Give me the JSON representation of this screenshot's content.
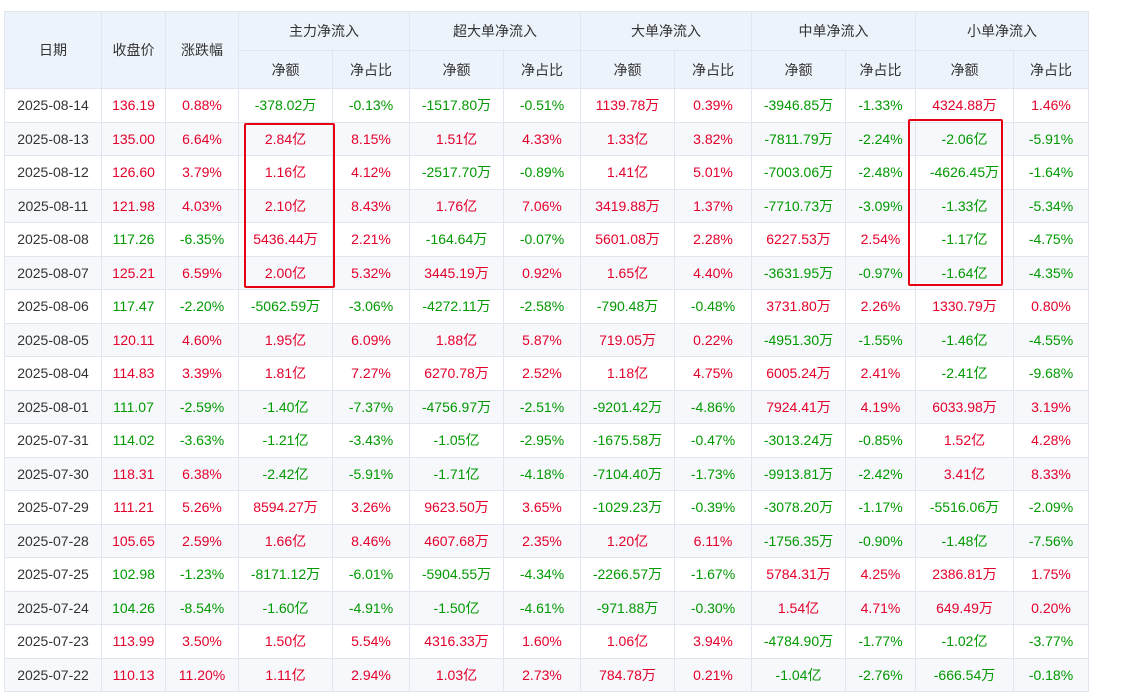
{
  "header": {
    "date": "日期",
    "close": "收盘价",
    "change": "涨跌幅",
    "groups": [
      "主力净流入",
      "超大单净流入",
      "大单净流入",
      "中单净流入",
      "小单净流入"
    ],
    "sub_amount": "净额",
    "sub_ratio": "净占比"
  },
  "rows": [
    [
      "2025-08-14",
      "136.19",
      "0.88%",
      "-378.02万",
      "-0.13%",
      "-1517.80万",
      "-0.51%",
      "1139.78万",
      "0.39%",
      "-3946.85万",
      "-1.33%",
      "4324.88万",
      "1.46%"
    ],
    [
      "2025-08-13",
      "135.00",
      "6.64%",
      "2.84亿",
      "8.15%",
      "1.51亿",
      "4.33%",
      "1.33亿",
      "3.82%",
      "-7811.79万",
      "-2.24%",
      "-2.06亿",
      "-5.91%"
    ],
    [
      "2025-08-12",
      "126.60",
      "3.79%",
      "1.16亿",
      "4.12%",
      "-2517.70万",
      "-0.89%",
      "1.41亿",
      "5.01%",
      "-7003.06万",
      "-2.48%",
      "-4626.45万",
      "-1.64%"
    ],
    [
      "2025-08-11",
      "121.98",
      "4.03%",
      "2.10亿",
      "8.43%",
      "1.76亿",
      "7.06%",
      "3419.88万",
      "1.37%",
      "-7710.73万",
      "-3.09%",
      "-1.33亿",
      "-5.34%"
    ],
    [
      "2025-08-08",
      "117.26",
      "-6.35%",
      "5436.44万",
      "2.21%",
      "-164.64万",
      "-0.07%",
      "5601.08万",
      "2.28%",
      "6227.53万",
      "2.54%",
      "-1.17亿",
      "-4.75%"
    ],
    [
      "2025-08-07",
      "125.21",
      "6.59%",
      "2.00亿",
      "5.32%",
      "3445.19万",
      "0.92%",
      "1.65亿",
      "4.40%",
      "-3631.95万",
      "-0.97%",
      "-1.64亿",
      "-4.35%"
    ],
    [
      "2025-08-06",
      "117.47",
      "-2.20%",
      "-5062.59万",
      "-3.06%",
      "-4272.11万",
      "-2.58%",
      "-790.48万",
      "-0.48%",
      "3731.80万",
      "2.26%",
      "1330.79万",
      "0.80%"
    ],
    [
      "2025-08-05",
      "120.11",
      "4.60%",
      "1.95亿",
      "6.09%",
      "1.88亿",
      "5.87%",
      "719.05万",
      "0.22%",
      "-4951.30万",
      "-1.55%",
      "-1.46亿",
      "-4.55%"
    ],
    [
      "2025-08-04",
      "114.83",
      "3.39%",
      "1.81亿",
      "7.27%",
      "6270.78万",
      "2.52%",
      "1.18亿",
      "4.75%",
      "6005.24万",
      "2.41%",
      "-2.41亿",
      "-9.68%"
    ],
    [
      "2025-08-01",
      "111.07",
      "-2.59%",
      "-1.40亿",
      "-7.37%",
      "-4756.97万",
      "-2.51%",
      "-9201.42万",
      "-4.86%",
      "7924.41万",
      "4.19%",
      "6033.98万",
      "3.19%"
    ],
    [
      "2025-07-31",
      "114.02",
      "-3.63%",
      "-1.21亿",
      "-3.43%",
      "-1.05亿",
      "-2.95%",
      "-1675.58万",
      "-0.47%",
      "-3013.24万",
      "-0.85%",
      "1.52亿",
      "4.28%"
    ],
    [
      "2025-07-30",
      "118.31",
      "6.38%",
      "-2.42亿",
      "-5.91%",
      "-1.71亿",
      "-4.18%",
      "-7104.40万",
      "-1.73%",
      "-9913.81万",
      "-2.42%",
      "3.41亿",
      "8.33%"
    ],
    [
      "2025-07-29",
      "111.21",
      "5.26%",
      "8594.27万",
      "3.26%",
      "9623.50万",
      "3.65%",
      "-1029.23万",
      "-0.39%",
      "-3078.20万",
      "-1.17%",
      "-5516.06万",
      "-2.09%"
    ],
    [
      "2025-07-28",
      "105.65",
      "2.59%",
      "1.66亿",
      "8.46%",
      "4607.68万",
      "2.35%",
      "1.20亿",
      "6.11%",
      "-1756.35万",
      "-0.90%",
      "-1.48亿",
      "-7.56%"
    ],
    [
      "2025-07-25",
      "102.98",
      "-1.23%",
      "-8171.12万",
      "-6.01%",
      "-5904.55万",
      "-4.34%",
      "-2266.57万",
      "-1.67%",
      "5784.31万",
      "4.25%",
      "2386.81万",
      "1.75%"
    ],
    [
      "2025-07-24",
      "104.26",
      "-8.54%",
      "-1.60亿",
      "-4.91%",
      "-1.50亿",
      "-4.61%",
      "-971.88万",
      "-0.30%",
      "1.54亿",
      "4.71%",
      "649.49万",
      "0.20%"
    ],
    [
      "2025-07-23",
      "113.99",
      "3.50%",
      "1.50亿",
      "5.54%",
      "4316.33万",
      "1.60%",
      "1.06亿",
      "3.94%",
      "-4784.90万",
      "-1.77%",
      "-1.02亿",
      "-3.77%"
    ],
    [
      "2025-07-22",
      "110.13",
      "11.20%",
      "1.11亿",
      "2.94%",
      "1.03亿",
      "2.73%",
      "784.78万",
      "0.21%",
      "-1.04亿",
      "-2.76%",
      "-666.54万",
      "-0.18%"
    ]
  ],
  "colors": {
    "up": "#e4002b",
    "down": "#009900",
    "highlight": "#e60012",
    "header_bg": "#edf3fb"
  }
}
